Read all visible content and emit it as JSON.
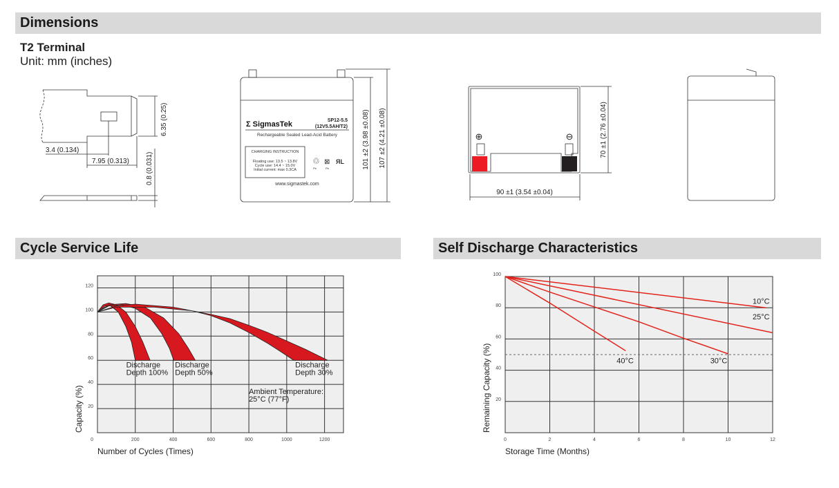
{
  "sections": {
    "dimensions": "Dimensions",
    "cycle": "Cycle Service Life",
    "self_discharge": "Self Discharge Characteristics"
  },
  "terminal": {
    "title": "T2 Terminal",
    "unit": "Unit: mm (inches)",
    "dim_a": "3.4 (0.134)",
    "dim_b": "7.95 (0.313)",
    "dim_c": "6.35 (0.25)",
    "dim_d": "0.8 (0.031)"
  },
  "front_view": {
    "brand": "SigmasTek",
    "brand_symbol": "Σ",
    "model": "SP12-5.5",
    "spec": "(12V5.5AH/T2)",
    "description": "Rechargeable Sealed Lead-Acid Battery",
    "charging_title": "CHARGING INSTRUCTION",
    "charging_lines": [
      "Floating use: 13.5 ~ 13.8V",
      "Cycle use: 14.4 ~ 15.0V",
      "Initial current: max 0.3CA"
    ],
    "icon_labels": [
      "Pb",
      "Pb"
    ],
    "website": "www.sigmastek.com",
    "dim_height": "101 ±2 (3.98 ±0.08)",
    "dim_total_height": "107 ±2 (4.21 ±0.08)"
  },
  "top_view": {
    "positive": "⊕",
    "negative": "⊖",
    "dim_width": "90 ±1 (3.54 ±0.04)",
    "dim_depth": "70 ±1 (2.76 ±0.04)",
    "colors": {
      "positive": "#ed1c24",
      "negative": "#231f20"
    }
  },
  "chart_data": [
    {
      "type": "area",
      "title": "Cycle Service Life",
      "xlabel": "Number of Cycles (Times)",
      "ylabel": "Capacity (%)",
      "xlim": [
        0,
        1300
      ],
      "ylim": [
        0,
        130
      ],
      "xticks": [
        200,
        400,
        600,
        800,
        1000,
        1200
      ],
      "yticks": [
        0,
        20,
        40,
        60,
        80,
        100,
        120
      ],
      "grid": true,
      "fill_color": "#d7191f",
      "series": [
        {
          "name": "Discharge Depth 100%",
          "upper": [
            [
              0,
              100
            ],
            [
              30,
              106
            ],
            [
              60,
              107.5
            ],
            [
              100,
              106
            ],
            [
              150,
              100
            ],
            [
              200,
              88
            ],
            [
              240,
              75
            ],
            [
              278,
              60
            ]
          ],
          "lower": [
            [
              0,
              100
            ],
            [
              40,
              105
            ],
            [
              70,
              105
            ],
            [
              110,
              100
            ],
            [
              150,
              88
            ],
            [
              180,
              75
            ],
            [
              200,
              60
            ]
          ]
        },
        {
          "name": "Discharge Depth 50%",
          "upper": [
            [
              0,
              100
            ],
            [
              60,
              106
            ],
            [
              150,
              107
            ],
            [
              250,
              104
            ],
            [
              350,
              95
            ],
            [
              430,
              82
            ],
            [
              480,
              70
            ],
            [
              517,
              60
            ]
          ],
          "lower": [
            [
              0,
              100
            ],
            [
              60,
              105
            ],
            [
              130,
              106
            ],
            [
              200,
              103
            ],
            [
              280,
              95
            ],
            [
              340,
              82
            ],
            [
              380,
              70
            ],
            [
              403,
              60
            ]
          ]
        },
        {
          "name": "Discharge Depth 30%",
          "upper": [
            [
              0,
              100
            ],
            [
              100,
              105
            ],
            [
              200,
              106.5
            ],
            [
              400,
              104
            ],
            [
              600,
              98
            ],
            [
              700,
              94.5
            ],
            [
              800,
              89
            ],
            [
              900,
              83
            ],
            [
              1000,
              76
            ],
            [
              1100,
              69
            ],
            [
              1217,
              60
            ]
          ],
          "lower": [
            [
              0,
              100
            ],
            [
              100,
              104
            ],
            [
              300,
              104
            ],
            [
              500,
              101
            ],
            [
              600,
              97
            ],
            [
              700,
              91
            ],
            [
              800,
              83
            ],
            [
              900,
              74
            ],
            [
              970,
              67
            ],
            [
              1037,
              60
            ]
          ]
        }
      ],
      "labels": {
        "d100": [
          "Discharge",
          "Depth 100%"
        ],
        "d50": [
          "Discharge",
          "Depth 50%"
        ],
        "d30": [
          "Discharge",
          "Depth 30%"
        ],
        "ambient": [
          "Ambient Temperature:",
          "25°C (77°F)"
        ]
      }
    },
    {
      "type": "line",
      "title": "Self Discharge Characteristics",
      "xlabel": "Storage Time (Months)",
      "ylabel": "Remaining Capacity (%)",
      "xlim": [
        0,
        12
      ],
      "ylim": [
        0,
        100
      ],
      "xticks": [
        0,
        2,
        4,
        6,
        8,
        10,
        12
      ],
      "yticks": [
        20,
        40,
        60,
        80,
        100
      ],
      "grid": true,
      "reference_line": 50,
      "line_color": "#e2231a",
      "series": [
        {
          "name": "10°C",
          "points": [
            [
              0,
              100
            ],
            [
              11.7,
              80
            ]
          ]
        },
        {
          "name": "25°C",
          "points": [
            [
              0,
              100
            ],
            [
              12,
              64
            ]
          ]
        },
        {
          "name": "30°C",
          "points": [
            [
              0,
              100
            ],
            [
              2,
              90
            ],
            [
              4,
              80.5
            ],
            [
              6,
              71
            ],
            [
              8,
              60.5
            ],
            [
              10,
              50.5
            ]
          ]
        },
        {
          "name": "40°C",
          "points": [
            [
              0,
              100
            ],
            [
              2,
              83
            ],
            [
              4,
              65
            ],
            [
              5.4,
              52.5
            ]
          ]
        }
      ]
    }
  ]
}
